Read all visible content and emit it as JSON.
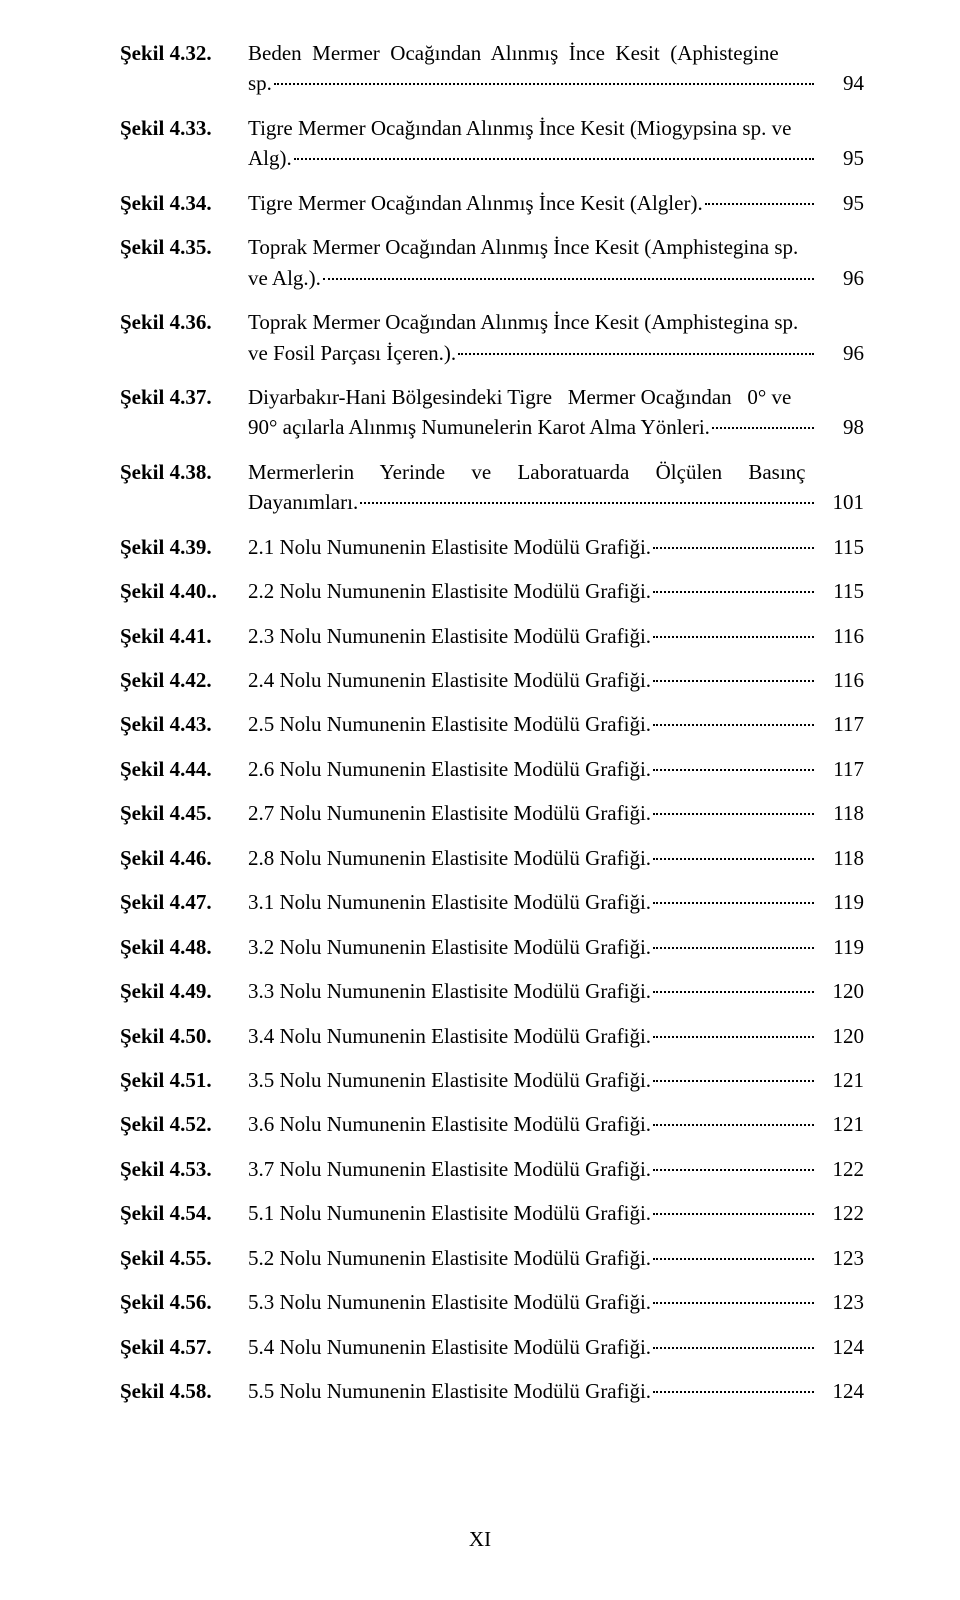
{
  "page": {
    "footer": "XI",
    "font_family": "Times New Roman",
    "font_size_pt": 16,
    "text_color": "#000000",
    "background_color": "#ffffff",
    "label_bold": true,
    "dot_leader_color": "#000000"
  },
  "entries": [
    {
      "label": "Şekil 4.32.",
      "lines": [
        "Beden  Mermer  Ocağından  Alınmış  İnce  Kesit  (Aphistegine"
      ],
      "last_prefix": "sp.",
      "page": "94"
    },
    {
      "label": "Şekil 4.33.",
      "lines": [
        "Tigre Mermer Ocağından Alınmış İnce Kesit (Miogypsina sp. ve"
      ],
      "last_prefix": "Alg).",
      "page": "95"
    },
    {
      "label": "Şekil 4.34.",
      "lines": [],
      "last_prefix": "Tigre Mermer Ocağından Alınmış İnce Kesit (Algler).",
      "page": "95"
    },
    {
      "label": "Şekil 4.35.",
      "lines": [
        "Toprak Mermer Ocağından Alınmış İnce Kesit (Amphistegina sp."
      ],
      "last_prefix": "ve Alg.).",
      "page": "96"
    },
    {
      "label": "Şekil 4.36.",
      "lines": [
        "Toprak Mermer Ocağından Alınmış İnce Kesit (Amphistegina sp."
      ],
      "last_prefix": "ve Fosil Parçası İçeren.).",
      "page": "96"
    },
    {
      "label": "Şekil 4.37.",
      "lines": [
        "Diyarbakır-Hani Bölgesindeki Tigre   Mermer Ocağından   0° ve"
      ],
      "last_prefix": "90° açılarla Alınmış Numunelerin Karot Alma Yönleri.",
      "page": "98"
    },
    {
      "label": "Şekil 4.38.",
      "lines": [
        "Mermerlerin     Yerinde     ve     Laboratuarda     Ölçülen     Basınç"
      ],
      "last_prefix": "Dayanımları.",
      "page": "101"
    },
    {
      "label": "Şekil 4.39.",
      "lines": [],
      "last_prefix": "2.1 Nolu Numunenin Elastisite Modülü Grafiği.",
      "page": "115"
    },
    {
      "label": "Şekil 4.40..",
      "lines": [],
      "last_prefix": "2.2 Nolu Numunenin Elastisite Modülü Grafiği.",
      "page": "115"
    },
    {
      "label": "Şekil 4.41.",
      "lines": [],
      "last_prefix": "2.3 Nolu Numunenin Elastisite Modülü Grafiği.",
      "page": "116"
    },
    {
      "label": "Şekil 4.42.",
      "lines": [],
      "last_prefix": "2.4 Nolu Numunenin Elastisite Modülü Grafiği.",
      "page": "116"
    },
    {
      "label": "Şekil 4.43.",
      "lines": [],
      "last_prefix": "2.5 Nolu Numunenin Elastisite Modülü Grafiği.",
      "page": "117"
    },
    {
      "label": "Şekil 4.44.",
      "lines": [],
      "last_prefix": "2.6 Nolu Numunenin Elastisite Modülü Grafiği.",
      "page": "117"
    },
    {
      "label": "Şekil 4.45.",
      "lines": [],
      "last_prefix": "2.7 Nolu Numunenin Elastisite Modülü Grafiği.",
      "page": "118"
    },
    {
      "label": "Şekil 4.46.",
      "lines": [],
      "last_prefix": "2.8 Nolu Numunenin Elastisite Modülü Grafiği.",
      "page": "118"
    },
    {
      "label": "Şekil 4.47.",
      "lines": [],
      "last_prefix": "3.1 Nolu Numunenin Elastisite Modülü Grafiği.",
      "page": "119"
    },
    {
      "label": "Şekil 4.48.",
      "lines": [],
      "last_prefix": "3.2 Nolu Numunenin Elastisite Modülü Grafiği.",
      "page": "119"
    },
    {
      "label": "Şekil 4.49.",
      "lines": [],
      "last_prefix": "3.3 Nolu Numunenin Elastisite Modülü Grafiği.",
      "page": "120"
    },
    {
      "label": "Şekil 4.50.",
      "lines": [],
      "last_prefix": "3.4 Nolu Numunenin Elastisite Modülü Grafiği.",
      "page": "120"
    },
    {
      "label": "Şekil 4.51.",
      "lines": [],
      "last_prefix": "3.5 Nolu Numunenin Elastisite Modülü Grafiği.",
      "page": "121"
    },
    {
      "label": "Şekil 4.52.",
      "lines": [],
      "last_prefix": "3.6 Nolu Numunenin Elastisite Modülü Grafiği.",
      "page": "121"
    },
    {
      "label": "Şekil 4.53.",
      "lines": [],
      "last_prefix": "3.7 Nolu Numunenin Elastisite Modülü Grafiği.",
      "page": "122"
    },
    {
      "label": "Şekil 4.54.",
      "lines": [],
      "last_prefix": "5.1 Nolu Numunenin Elastisite Modülü Grafiği.",
      "page": "122"
    },
    {
      "label": "Şekil 4.55.",
      "lines": [],
      "last_prefix": "5.2 Nolu Numunenin Elastisite Modülü Grafiği.",
      "page": "123"
    },
    {
      "label": "Şekil 4.56.",
      "lines": [],
      "last_prefix": "5.3 Nolu Numunenin Elastisite Modülü Grafiği.",
      "page": "123"
    },
    {
      "label": "Şekil 4.57.",
      "lines": [],
      "last_prefix": "5.4 Nolu Numunenin Elastisite Modülü Grafiği.",
      "page": "124"
    },
    {
      "label": "Şekil 4.58.",
      "lines": [],
      "last_prefix": "5.5 Nolu Numunenin Elastisite Modülü Grafiği.",
      "page": "124"
    }
  ]
}
